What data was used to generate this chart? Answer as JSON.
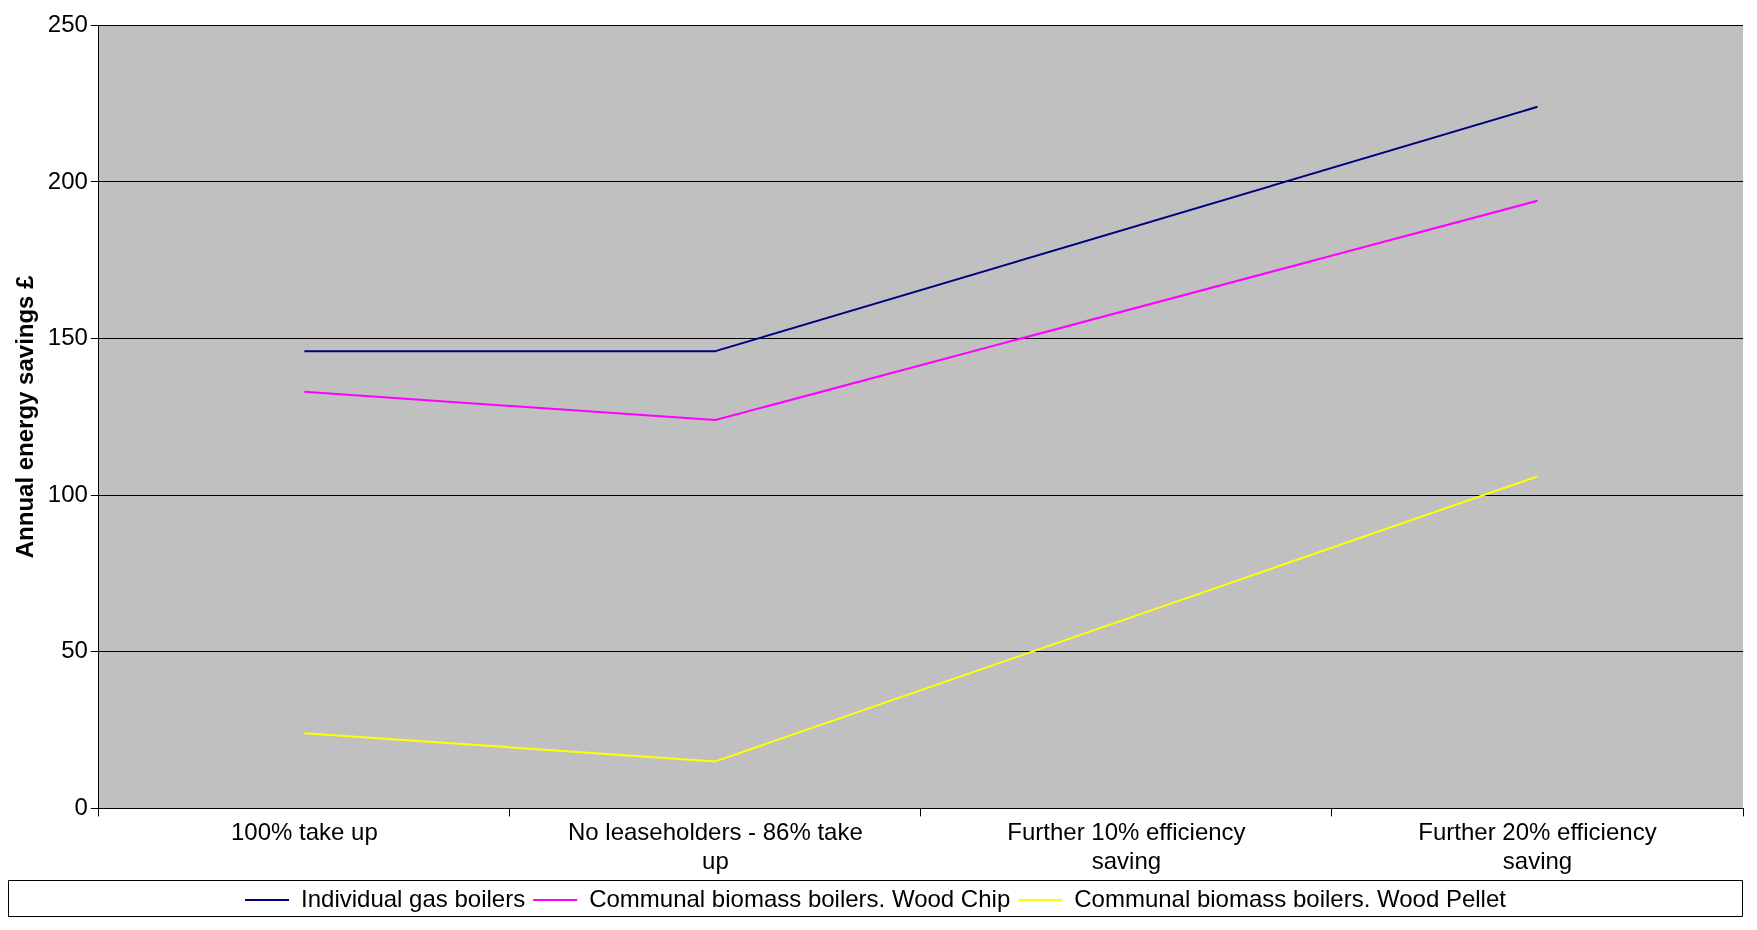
{
  "chart_data": {
    "type": "line",
    "ylabel": "Annual energy savings £",
    "categories": [
      "100% take up",
      "No leaseholders - 86% take up",
      "Further 10% efficiency saving",
      "Further 20% efficiency saving"
    ],
    "series": [
      {
        "name": "Individual gas boilers",
        "color": "#000080",
        "values": [
          146,
          146,
          null,
          224
        ]
      },
      {
        "name": "Communal biomass boilers. Wood Chip",
        "color": "#ff00ff",
        "values": [
          133,
          124,
          null,
          194
        ]
      },
      {
        "name": "Communal biomass boilers. Wood Pellet",
        "color": "#ffff00",
        "values": [
          24,
          15,
          null,
          106
        ]
      }
    ],
    "ylim": [
      0,
      250
    ],
    "yticks": [
      0,
      50,
      100,
      150,
      200,
      250
    ],
    "grid": "y",
    "legend": "bottom",
    "marker": "none",
    "line_style": "solid"
  }
}
